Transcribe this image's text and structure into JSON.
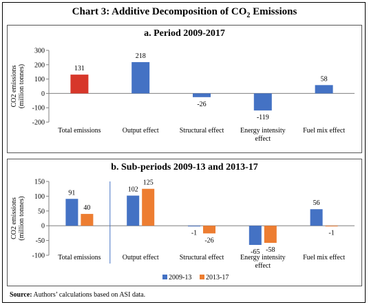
{
  "header": {
    "title_prefix": "Chart 3: Additive Decomposition of CO",
    "title_sub": "2",
    "title_suffix": " Emissions"
  },
  "source": {
    "label": "Source:",
    "text": " Authors’ calculations based on ASI data."
  },
  "colors": {
    "red": "#d7372a",
    "blue": "#4472c4",
    "orange": "#ed7d31"
  },
  "chart_data": [
    {
      "type": "bar",
      "title": "a. Period 2009-2017",
      "ylabel_lines": [
        "CO2 emissions",
        "(million tonnes)"
      ],
      "ylim": [
        -200,
        300
      ],
      "yticks": [
        -200,
        -100,
        0,
        100,
        200,
        300
      ],
      "categories": [
        "Total emissions",
        "Output effect",
        "Structural effect",
        "Energy intensity effect",
        "Fuel mix effect"
      ],
      "category_label_lines": [
        [
          "Total emissions"
        ],
        [
          "Output effect"
        ],
        [
          "Structural effect"
        ],
        [
          "Energy intensity",
          "effect"
        ],
        [
          "Fuel mix effect"
        ]
      ],
      "values": [
        131,
        218,
        -26,
        -119,
        58
      ],
      "bar_colors": [
        "#d7372a",
        "#4472c4",
        "#4472c4",
        "#4472c4",
        "#4472c4"
      ],
      "grid": false
    },
    {
      "type": "bar",
      "title": "b. Sub-periods 2009-13 and 2013-17",
      "ylabel_lines": [
        "CO2 emissions",
        "(million tonnes)"
      ],
      "ylim": [
        -100,
        150
      ],
      "yticks": [
        -100,
        -50,
        0,
        50,
        100,
        150
      ],
      "categories": [
        "Total emissions",
        "Output effect",
        "Structural effect",
        "Energy intensity effect",
        "Fuel mix effect"
      ],
      "category_label_lines": [
        [
          "Total emissions"
        ],
        [
          "Output effect"
        ],
        [
          "Structural effect"
        ],
        [
          "Energy intensity",
          "effect"
        ],
        [
          "Fuel mix effect"
        ]
      ],
      "series": [
        {
          "name": "2009-13",
          "color": "#4472c4",
          "values": [
            91,
            102,
            -1,
            -65,
            56
          ]
        },
        {
          "name": "2013-17",
          "color": "#ed7d31",
          "values": [
            40,
            125,
            -26,
            -58,
            -1
          ]
        }
      ],
      "legend_position": "bottom",
      "grid": false
    }
  ]
}
